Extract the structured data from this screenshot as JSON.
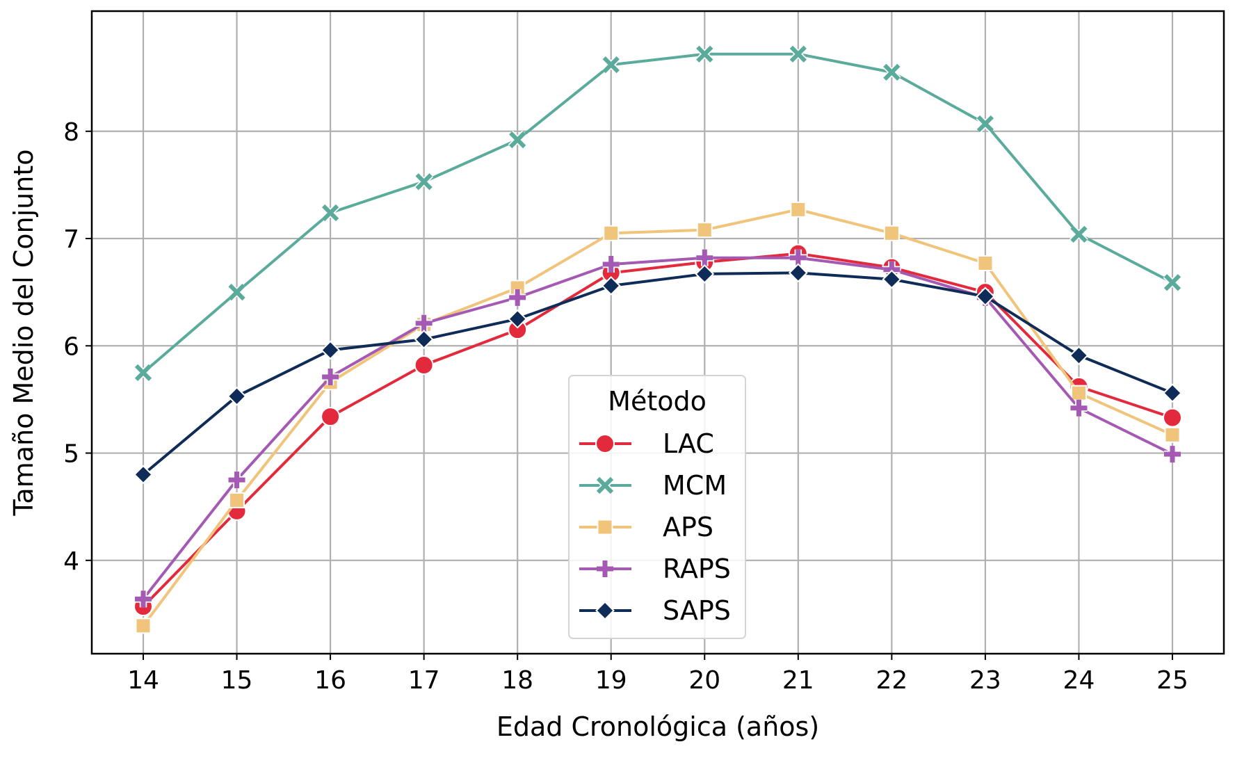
{
  "chart_data": {
    "type": "line",
    "xlabel": "Edad Cronológica (años)",
    "ylabel": "Tamaño Medio del Conjunto",
    "x": [
      14,
      15,
      16,
      17,
      18,
      19,
      20,
      21,
      22,
      23,
      24,
      25
    ],
    "xlim": [
      13.45,
      25.55
    ],
    "ylim": [
      3.13,
      9.12
    ],
    "xticks": [
      14,
      15,
      16,
      17,
      18,
      19,
      20,
      21,
      22,
      23,
      24,
      25
    ],
    "yticks": [
      4,
      5,
      6,
      7,
      8
    ],
    "grid": true,
    "legend": {
      "title": "Método",
      "placement": "lower-center"
    },
    "series": [
      {
        "name": "LAC",
        "color": "#e32a3c",
        "marker": "circle",
        "values": [
          3.57,
          4.46,
          5.34,
          5.82,
          6.15,
          6.68,
          6.78,
          6.86,
          6.73,
          6.5,
          5.62,
          5.33
        ]
      },
      {
        "name": "MCM",
        "color": "#5aab9b",
        "marker": "x",
        "values": [
          5.75,
          6.5,
          7.24,
          7.53,
          7.92,
          8.62,
          8.72,
          8.72,
          8.55,
          8.07,
          7.04,
          6.59
        ]
      },
      {
        "name": "APS",
        "color": "#f0c47a",
        "marker": "square",
        "values": [
          3.39,
          4.56,
          5.66,
          6.2,
          6.54,
          7.05,
          7.08,
          7.27,
          7.05,
          6.77,
          5.56,
          5.17
        ]
      },
      {
        "name": "RAPS",
        "color": "#a459b3",
        "marker": "plus",
        "values": [
          3.64,
          4.75,
          5.71,
          6.21,
          6.45,
          6.76,
          6.82,
          6.82,
          6.71,
          6.45,
          5.42,
          4.99
        ]
      },
      {
        "name": "SAPS",
        "color": "#0f2b57",
        "marker": "diamond",
        "values": [
          4.8,
          5.53,
          5.96,
          6.06,
          6.25,
          6.56,
          6.67,
          6.68,
          6.62,
          6.46,
          5.91,
          5.56
        ]
      }
    ]
  }
}
